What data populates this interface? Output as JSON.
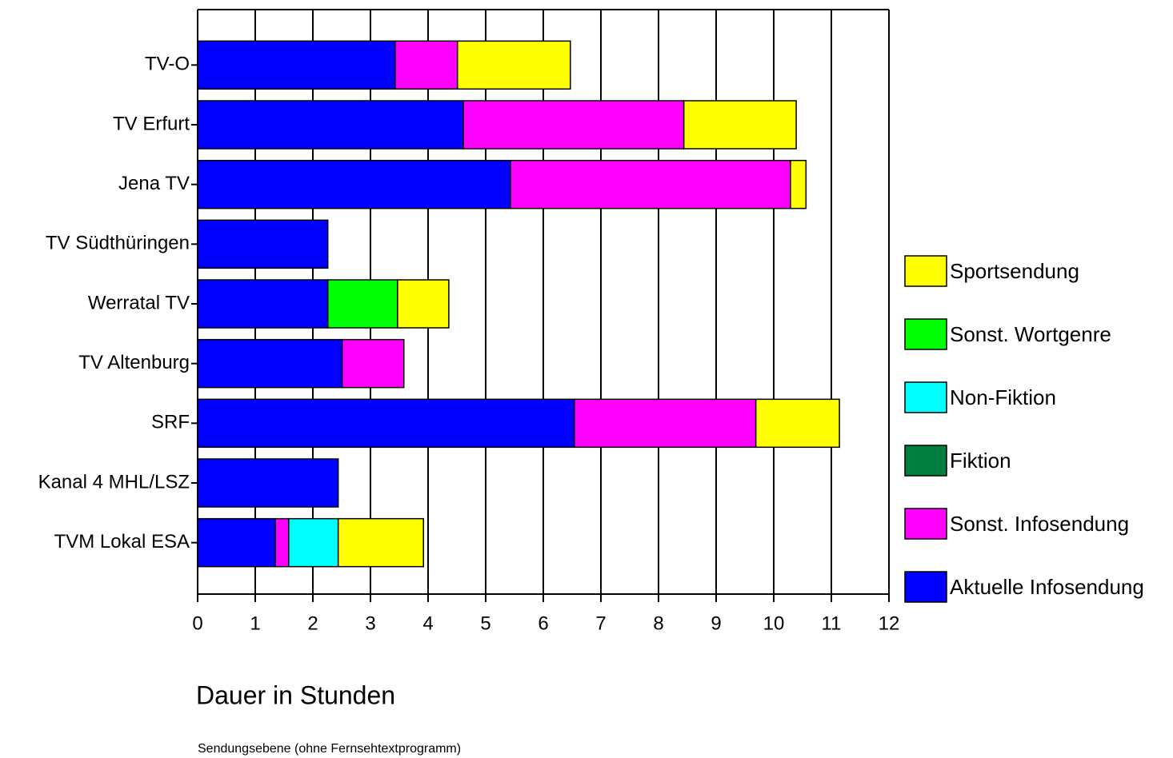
{
  "chart_data": {
    "type": "stacked-barh",
    "xlabel": "Dauer in Stunden",
    "footnote": "Sendungsebene (ohne Fernsehtextprogramm)",
    "categories": [
      "TV-O",
      "TV Erfurt",
      "Jena TV",
      "TV Südthüringen",
      "Werratal TV",
      "TV Altenburg",
      "SRF",
      "Kanal 4 MHL/LSZ",
      "TVM Lokal ESA"
    ],
    "series": [
      {
        "name": "Aktuelle Infosendung",
        "color": "#0000ff",
        "values": [
          3.43,
          4.61,
          5.43,
          2.26,
          2.26,
          2.51,
          6.54,
          2.44,
          1.35
        ]
      },
      {
        "name": "Sonst. Infosendung",
        "color": "#ff00ff",
        "values": [
          1.08,
          3.83,
          4.86,
          0,
          0,
          1.07,
          3.15,
          0,
          0.23
        ]
      },
      {
        "name": "Fiktion",
        "color": "#008040",
        "values": [
          0,
          0,
          0,
          0,
          0,
          0,
          0,
          0,
          0
        ]
      },
      {
        "name": "Non-Fiktion",
        "color": "#00ffff",
        "values": [
          0,
          0,
          0,
          0,
          0,
          0,
          0,
          0,
          0.86
        ]
      },
      {
        "name": "Sonst. Wortgenre",
        "color": "#00ff00",
        "values": [
          0,
          0,
          0,
          0,
          1.21,
          0,
          0,
          0,
          0
        ]
      },
      {
        "name": "Sportsendung",
        "color": "#ffff00",
        "values": [
          1.96,
          1.95,
          0.27,
          0,
          0.89,
          0,
          1.45,
          0,
          1.48
        ]
      }
    ],
    "xlim": [
      0,
      12
    ],
    "xticks": [
      0,
      1,
      2,
      3,
      4,
      5,
      6,
      7,
      8,
      9,
      10,
      11,
      12
    ],
    "grid": true,
    "legend": "right"
  }
}
